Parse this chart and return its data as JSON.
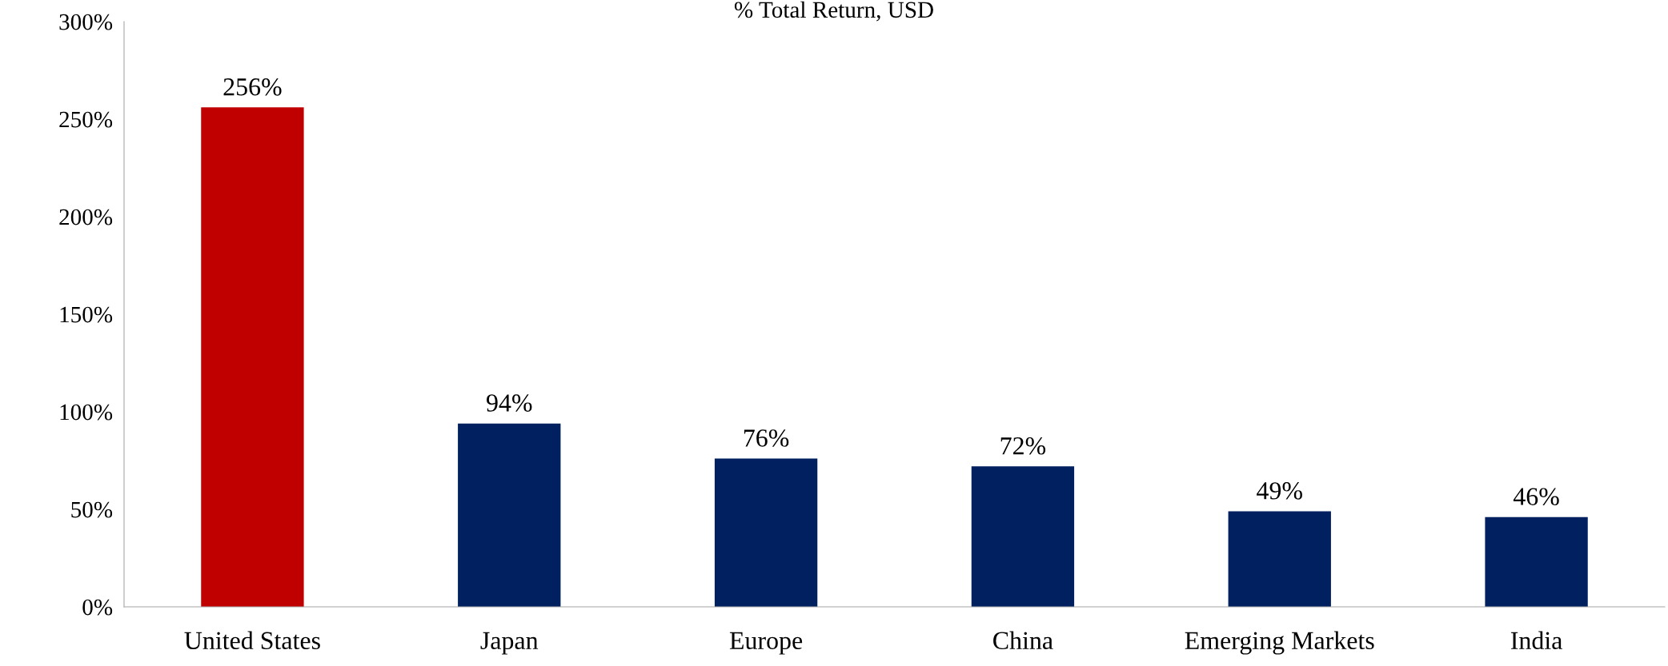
{
  "chart_data": {
    "type": "bar",
    "title": "% Total Return, USD",
    "categories": [
      "United States",
      "Japan",
      "Europe",
      "China",
      "Emerging Markets",
      "India"
    ],
    "values": [
      256,
      94,
      76,
      72,
      49,
      46
    ],
    "colors": [
      "#c00000",
      "#002060",
      "#002060",
      "#002060",
      "#002060",
      "#002060"
    ],
    "value_labels": [
      "256%",
      "94%",
      "76%",
      "72%",
      "49%",
      "46%"
    ],
    "ylim": [
      0,
      300
    ],
    "yticks": [
      {
        "value": 0,
        "label": "0%"
      },
      {
        "value": 50,
        "label": "50%"
      },
      {
        "value": 100,
        "label": "100%"
      },
      {
        "value": 150,
        "label": "150%"
      },
      {
        "value": 200,
        "label": "200%"
      },
      {
        "value": 250,
        "label": "250%"
      },
      {
        "value": 300,
        "label": "300%"
      }
    ],
    "grid": false,
    "legend": false
  }
}
